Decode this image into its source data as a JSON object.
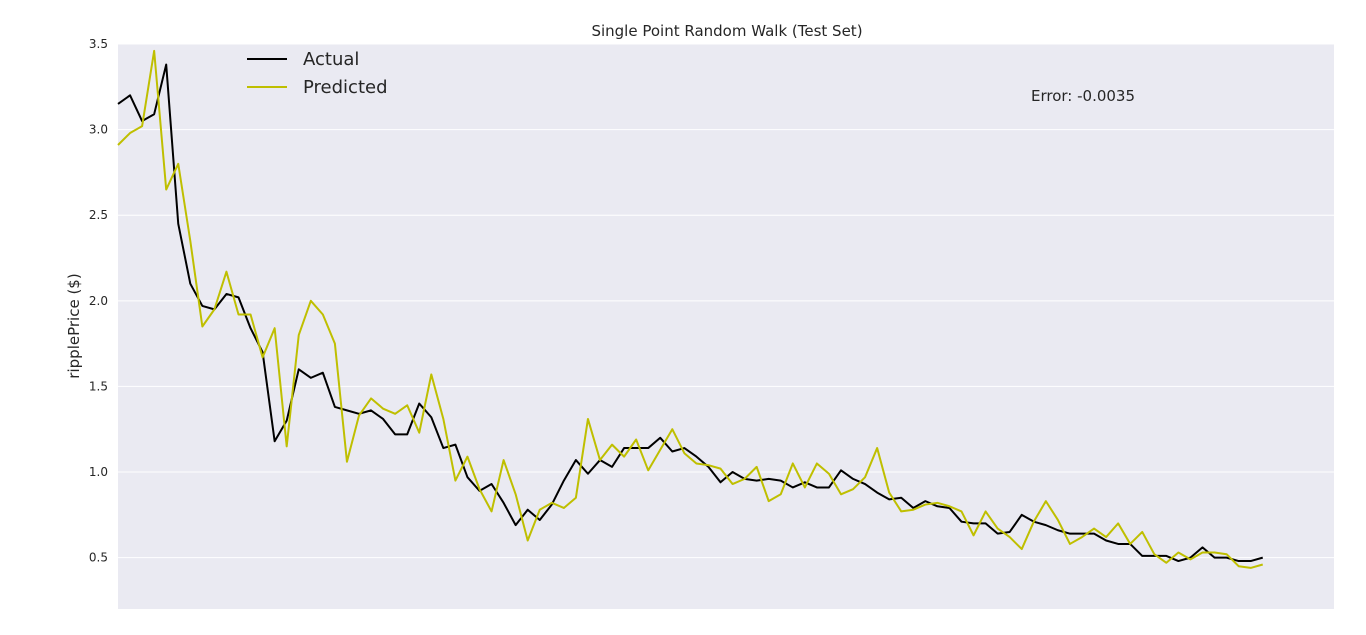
{
  "chart_data": {
    "type": "line",
    "title": "Single Point Random Walk (Test Set)",
    "xlabel": "",
    "ylabel": "ripplePrice ($)",
    "ylim": [
      0.2,
      3.5
    ],
    "yticks": [
      "0.5",
      "1.0",
      "1.5",
      "2.0",
      "2.5",
      "3.0",
      "3.5"
    ],
    "grid": true,
    "legend_position": "top-left",
    "annotation": "Error: -0.0035",
    "series": [
      {
        "name": "Actual",
        "color": "#000000",
        "values": [
          3.15,
          3.2,
          3.05,
          3.09,
          3.38,
          2.45,
          2.1,
          1.97,
          1.95,
          2.04,
          2.02,
          1.84,
          1.7,
          1.18,
          1.3,
          1.6,
          1.55,
          1.58,
          1.38,
          1.36,
          1.34,
          1.36,
          1.31,
          1.22,
          1.22,
          1.4,
          1.32,
          1.14,
          1.16,
          0.97,
          0.89,
          0.93,
          0.82,
          0.69,
          0.78,
          0.72,
          0.81,
          0.95,
          1.07,
          0.99,
          1.07,
          1.03,
          1.14,
          1.14,
          1.14,
          1.2,
          1.12,
          1.14,
          1.09,
          1.03,
          0.94,
          1.0,
          0.96,
          0.95,
          0.96,
          0.95,
          0.91,
          0.94,
          0.91,
          0.91,
          1.01,
          0.96,
          0.93,
          0.88,
          0.84,
          0.85,
          0.79,
          0.83,
          0.8,
          0.79,
          0.71,
          0.7,
          0.7,
          0.64,
          0.65,
          0.75,
          0.71,
          0.69,
          0.66,
          0.64,
          0.64,
          0.64,
          0.6,
          0.58,
          0.58,
          0.51,
          0.51,
          0.51,
          0.48,
          0.5,
          0.56,
          0.5,
          0.5,
          0.48,
          0.48,
          0.5
        ]
      },
      {
        "name": "Predicted",
        "color": "#bfbf00",
        "values": [
          2.91,
          2.98,
          3.02,
          3.46,
          2.65,
          2.8,
          2.35,
          1.85,
          1.95,
          2.17,
          1.92,
          1.92,
          1.67,
          1.84,
          1.15,
          1.8,
          2.0,
          1.92,
          1.75,
          1.06,
          1.33,
          1.43,
          1.37,
          1.34,
          1.39,
          1.23,
          1.57,
          1.31,
          0.95,
          1.09,
          0.9,
          0.77,
          1.07,
          0.87,
          0.6,
          0.78,
          0.82,
          0.79,
          0.85,
          1.31,
          1.07,
          1.16,
          1.09,
          1.19,
          1.01,
          1.13,
          1.25,
          1.11,
          1.05,
          1.04,
          1.02,
          0.93,
          0.96,
          1.03,
          0.83,
          0.87,
          1.05,
          0.91,
          1.05,
          0.99,
          0.87,
          0.9,
          0.97,
          1.14,
          0.88,
          0.77,
          0.78,
          0.81,
          0.82,
          0.8,
          0.77,
          0.63,
          0.77,
          0.67,
          0.62,
          0.55,
          0.71,
          0.83,
          0.72,
          0.58,
          0.62,
          0.67,
          0.62,
          0.7,
          0.58,
          0.65,
          0.52,
          0.47,
          0.53,
          0.49,
          0.53,
          0.53,
          0.52,
          0.45,
          0.44,
          0.46
        ]
      }
    ]
  }
}
